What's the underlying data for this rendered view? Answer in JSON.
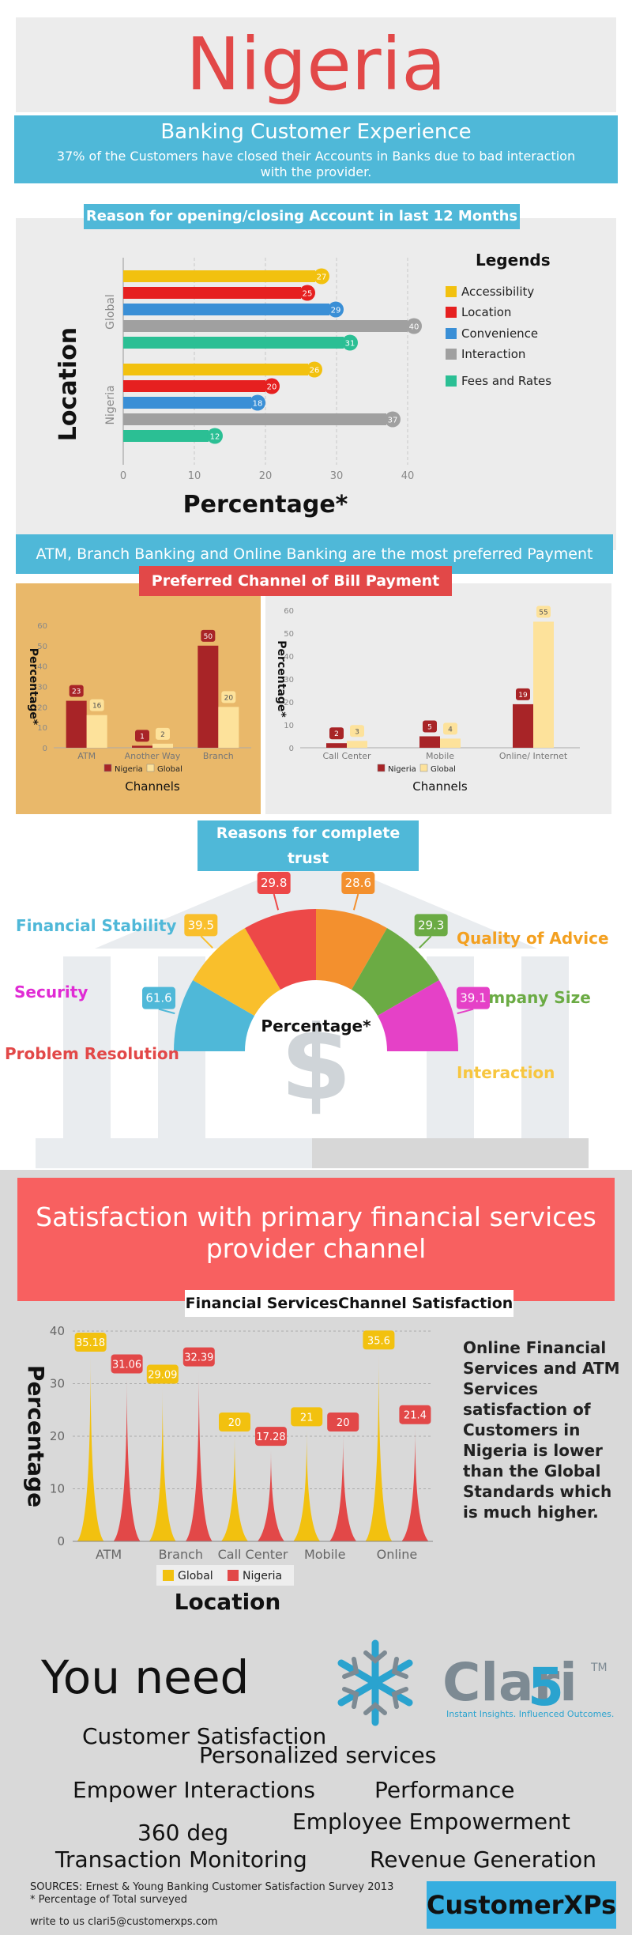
{
  "header": {
    "title": "Nigeria",
    "subtitle": "Banking Customer Experience",
    "tagline": "37% of the Customers have closed their Accounts in Banks due to bad interaction with the provider."
  },
  "section1": {
    "label": "Reason for opening/closing Account in last 12 Months",
    "legend_title": "Legends"
  },
  "section2": {
    "strip": "ATM, Branch Banking and Online Banking are the most preferred Payment Channels",
    "label": "Preferred Channel of Bill Payment"
  },
  "section3": {
    "label": "Reasons for complete trust"
  },
  "section4": {
    "banner": "Satisfaction with primary financial services provider channel",
    "label": "Financial ServicesChannel Satisfaction",
    "note": "Online Financial Services and ATM Services satisfaction of Customers in Nigeria is lower than the Global Standards which is much higher."
  },
  "section5": {
    "heading": "You need",
    "items": [
      "Customer Satisfaction",
      "Personalized services",
      "Empower Interactions",
      "Performance",
      "Employee Empowerment",
      "360 deg",
      "Transaction Monitoring",
      "Revenue Generation"
    ],
    "logo_main": "Clari",
    "logo_digit": "5",
    "logo_tm": "TM",
    "logo_sub": "Instant Insights. Influenced Outcomes.",
    "sources": "SOURCES: Ernest & Young Banking Customer Satisfaction Survey 2013",
    "footnote": "* Percentage of Total surveyed",
    "contact": "write to us clari5@customerxps.com",
    "brand": "CustomerXPs"
  },
  "colors": {
    "red": "#e24848",
    "blue": "#4fb8d8",
    "yellow": "#f2c10f",
    "grey": "#a0a0a0",
    "teal": "#2bbf94",
    "darkred": "#a82427",
    "cream": "#fde29b"
  },
  "chart_data": [
    {
      "type": "bar",
      "orientation": "horizontal",
      "groups": [
        "Global",
        "Nigeria"
      ],
      "series": [
        {
          "name": "Accessibility",
          "values": [
            27,
            26
          ],
          "color": "#f2c10f"
        },
        {
          "name": "Location",
          "values": [
            25,
            20
          ],
          "color": "#e62020"
        },
        {
          "name": "Convenience",
          "values": [
            29,
            18
          ],
          "color": "#3a8fd6"
        },
        {
          "name": "Interaction",
          "values": [
            40,
            37
          ],
          "color": "#a0a0a0"
        },
        {
          "name": "Fees and Rates",
          "values": [
            31,
            12
          ],
          "color": "#2bbf94"
        }
      ],
      "xlabel": "Percentage*",
      "ylabel": "Location",
      "xlim": [
        0,
        40
      ],
      "xticks": [
        0,
        10,
        20,
        30,
        40
      ],
      "grid": true,
      "legend": "right"
    },
    {
      "type": "bar",
      "categories": [
        "ATM",
        "Another Way",
        "Branch"
      ],
      "series": [
        {
          "name": "Nigeria",
          "values": [
            23,
            1,
            50
          ],
          "color": "#a82427"
        },
        {
          "name": "Global",
          "values": [
            16,
            2,
            20
          ],
          "color": "#fde29b"
        }
      ],
      "xlabel": "Channels",
      "ylabel": "Percentage*",
      "ylim": [
        0,
        60
      ],
      "yticks": [
        0,
        10,
        20,
        30,
        40,
        50,
        60
      ],
      "legend": "bottom"
    },
    {
      "type": "bar",
      "categories": [
        "Call Center",
        "Mobile",
        "Online/ Internet"
      ],
      "series": [
        {
          "name": "Nigeria",
          "values": [
            2,
            5,
            19
          ],
          "color": "#a82427"
        },
        {
          "name": "Global",
          "values": [
            3,
            4,
            55
          ],
          "color": "#fde29b"
        }
      ],
      "xlabel": "Channels",
      "ylabel": "Percentage*",
      "ylim": [
        0,
        60
      ],
      "yticks": [
        0,
        10,
        20,
        30,
        40,
        50,
        60
      ],
      "legend": "bottom"
    },
    {
      "type": "pie",
      "style": "half-donut",
      "center_label": "Percentage*",
      "slices": [
        {
          "name": "Problem Resolution",
          "value": 61.6,
          "color": "#4fb8d8"
        },
        {
          "name": "Security",
          "value": 39.5,
          "color": "#f9bf2c"
        },
        {
          "name": "Financial Stability",
          "value": 29.8,
          "color": "#ed4848"
        },
        {
          "name": "Quality of Advice",
          "value": 28.6,
          "color": "#f3902e"
        },
        {
          "name": "Company Size",
          "value": 29.3,
          "color": "#6bab44"
        },
        {
          "name": "Interaction",
          "value": 39.1,
          "color": "#e541c7"
        }
      ],
      "label_colors": {
        "Financial Stability": "#4fb8d8",
        "Security": "#e02bd4",
        "Problem Resolution": "#e24848",
        "Quality of Advice": "#f3a020",
        "Company Size": "#6bab44",
        "Interaction": "#f7c640"
      }
    },
    {
      "type": "area",
      "style": "spike",
      "categories": [
        "ATM",
        "Branch",
        "Call Center",
        "Mobile",
        "Online"
      ],
      "series": [
        {
          "name": "Global",
          "values": [
            35.18,
            29.09,
            20,
            21,
            35.6
          ],
          "color": "#f2c10f"
        },
        {
          "name": "Nigeria",
          "values": [
            31.06,
            32.39,
            17.28,
            20,
            21.4
          ],
          "color": "#e24848"
        }
      ],
      "xlabel": "Location",
      "ylabel": "Percentage",
      "ylim": [
        0,
        40
      ],
      "yticks": [
        0,
        10,
        20,
        30,
        40
      ],
      "grid": true,
      "legend": "bottom"
    }
  ]
}
